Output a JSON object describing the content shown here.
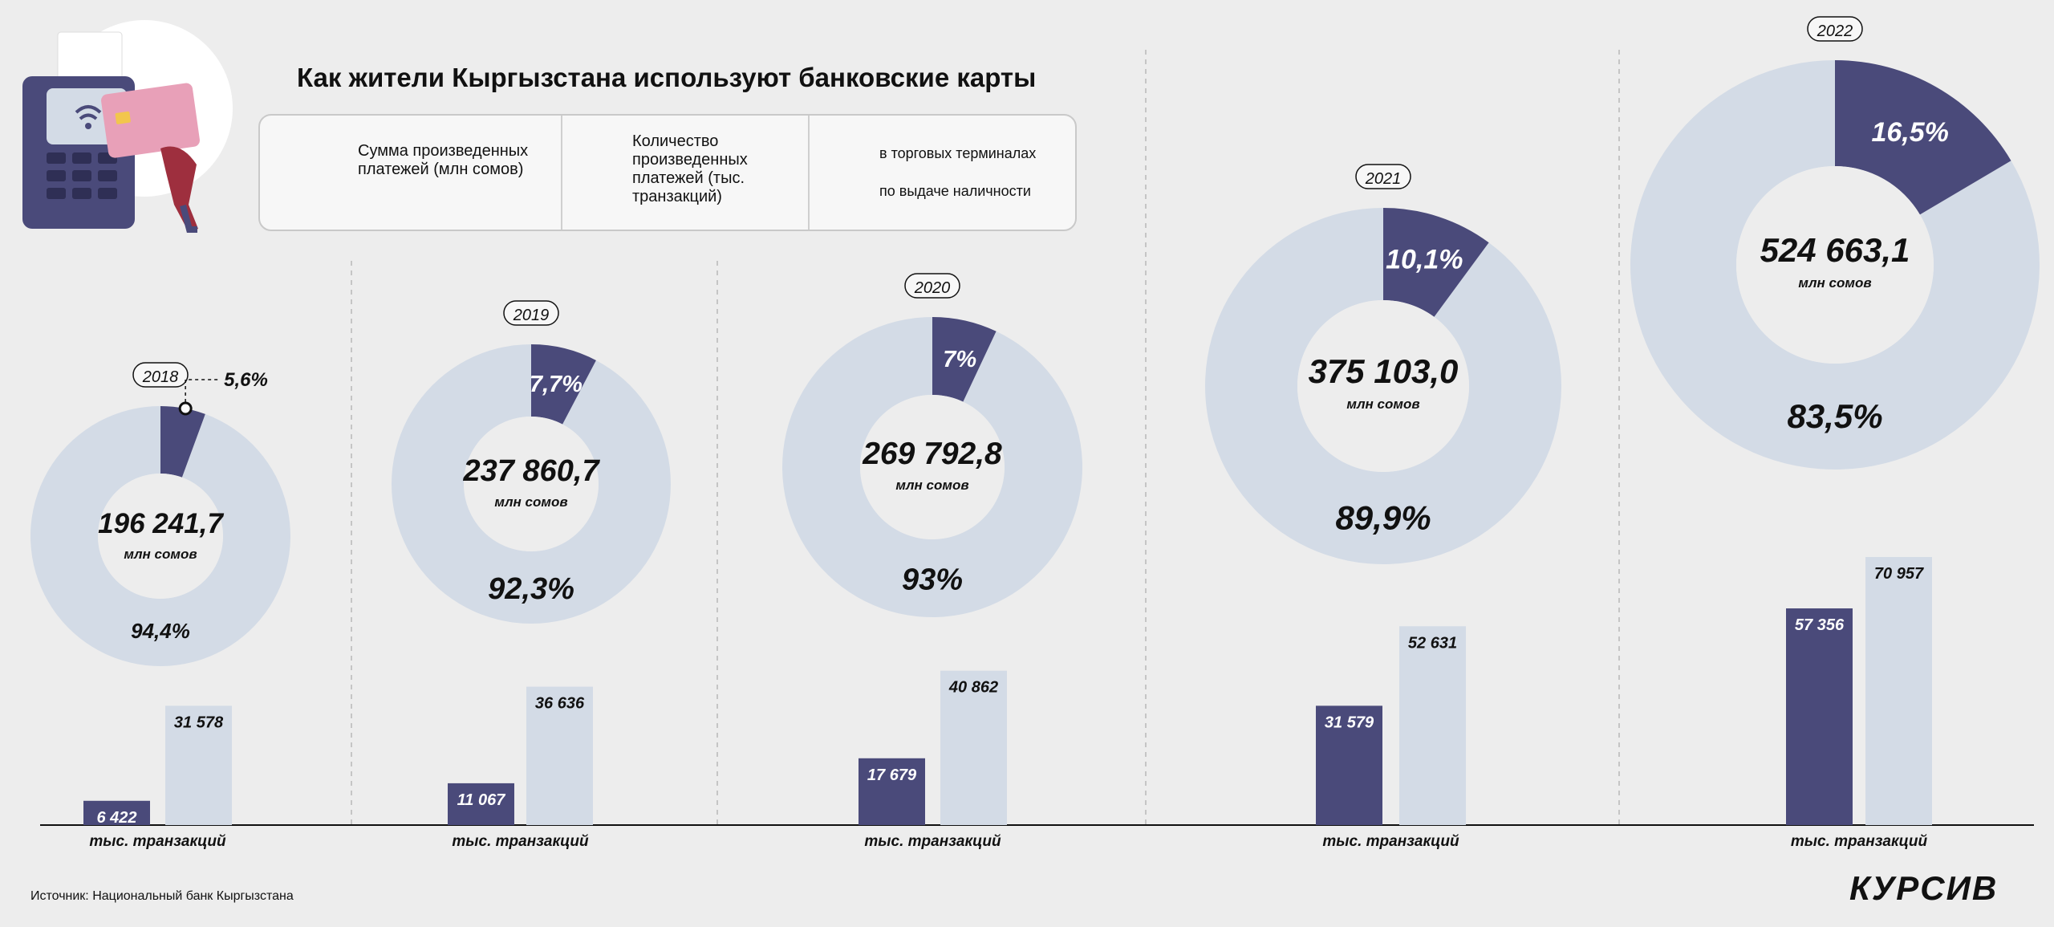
{
  "title": "Как жители Кыргызстана используют банковские карты",
  "legend": {
    "sum_label": "Сумма произведенных платежей (млн сомов)",
    "count_label": "Количество произведенных платежей (тыс. транзакций)",
    "terminals_label": "в торговых терминалах",
    "cash_label": "по выдаче наличности"
  },
  "colors": {
    "terminals": "#4a4a7a",
    "cash": "#d3dbe6",
    "background": "#ededed"
  },
  "chart_data": {
    "type": "donut+bar",
    "unit_amount": "млн сомов",
    "unit_count": "тыс. транзакций",
    "years": [
      {
        "year": "2018",
        "total": "196 241,7",
        "terminals_share": 5.6,
        "terminals_label": "5,6%",
        "cash_label": "94,4%",
        "terminals_count": 6422,
        "terminals_count_label": "6 422",
        "cash_count": 31578,
        "cash_count_label": "31 578"
      },
      {
        "year": "2019",
        "total": "237 860,7",
        "terminals_share": 7.7,
        "terminals_label": "7,7%",
        "cash_label": "92,3%",
        "terminals_count": 11067,
        "terminals_count_label": "11 067",
        "cash_count": 36636,
        "cash_count_label": "36 636"
      },
      {
        "year": "2020",
        "total": "269 792,8",
        "terminals_share": 7.0,
        "terminals_label": "7%",
        "cash_label": "93%",
        "terminals_count": 17679,
        "terminals_count_label": "17 679",
        "cash_count": 40862,
        "cash_count_label": "40 862"
      },
      {
        "year": "2021",
        "total": "375 103,0",
        "terminals_share": 10.1,
        "terminals_label": "10,1%",
        "cash_label": "89,9%",
        "terminals_count": 31579,
        "terminals_count_label": "31 579",
        "cash_count": 52631,
        "cash_count_label": "52 631"
      },
      {
        "year": "2022",
        "total": "524 663,1",
        "terminals_share": 16.5,
        "terminals_label": "16,5%",
        "cash_label": "83,5%",
        "terminals_count": 57356,
        "terminals_count_label": "57 356",
        "cash_count": 70957,
        "cash_count_label": "70 957"
      }
    ]
  },
  "source": "Источник: Национальный банк Кыргызстана",
  "brand": "КУРСИВ"
}
